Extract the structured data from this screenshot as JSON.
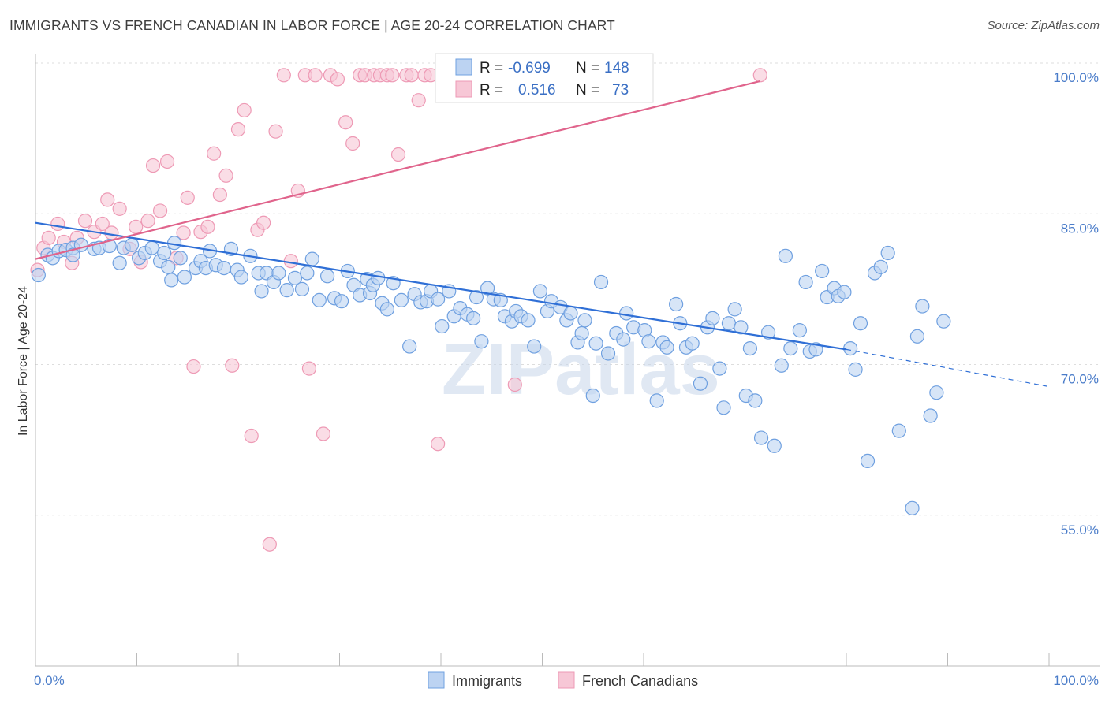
{
  "header": {
    "title": "IMMIGRANTS VS FRENCH CANADIAN IN LABOR FORCE | AGE 20-24 CORRELATION CHART",
    "source": "Source: ZipAtlas.com"
  },
  "watermark": "ZIPatlas",
  "legend_box": {
    "rows": [
      {
        "r_label": "R =",
        "r_value": "-0.699",
        "n_label": "N =",
        "n_value": "148",
        "color": "#6fa0e0"
      },
      {
        "r_label": "R =",
        "r_value": "0.516",
        "n_label": "N =",
        "n_value": "73",
        "color": "#f08aaa"
      }
    ]
  },
  "bottom_legend": [
    "Immigrants",
    "French Canadians"
  ],
  "colors": {
    "blue_fill": "#bcd3f2",
    "blue_stroke": "#6fa0e0",
    "blue_line": "#2f6fd6",
    "pink_fill": "#f7c7d6",
    "pink_stroke": "#ee9ab5",
    "pink_line": "#e0648c",
    "tick_text": "#4a7cc9",
    "grid": "#dddddd"
  },
  "chart_data": {
    "type": "scatter",
    "title": "IMMIGRANTS VS FRENCH CANADIAN IN LABOR FORCE | AGE 20-24 CORRELATION CHART",
    "xlabel": "",
    "ylabel": "In Labor Force | Age 20-24",
    "xlim": [
      0,
      100
    ],
    "ylim": [
      40,
      100
    ],
    "x_tick_labels": [
      "0.0%",
      "100.0%"
    ],
    "y_tick_labels": [
      "55.0%",
      "70.0%",
      "85.0%",
      "100.0%"
    ],
    "y_ticks": [
      55,
      70,
      85,
      100
    ],
    "grid": true,
    "legend_position": "bottom-center",
    "series": [
      {
        "name": "Immigrants",
        "color": "#6fa0e0",
        "trend": {
          "x": [
            0,
            80
          ],
          "y": [
            84.1,
            71.5
          ],
          "dashed_extension_to": [
            100,
            67.8
          ]
        },
        "points": [
          [
            0.3,
            78.9
          ],
          [
            1.2,
            80.9
          ],
          [
            1.7,
            80.6
          ],
          [
            2.3,
            81.3
          ],
          [
            3.0,
            81.4
          ],
          [
            3.7,
            81.6
          ],
          [
            3.7,
            80.9
          ],
          [
            4.5,
            81.9
          ],
          [
            5.8,
            81.5
          ],
          [
            6.3,
            81.6
          ],
          [
            7.3,
            81.8
          ],
          [
            8.3,
            80.1
          ],
          [
            8.7,
            81.6
          ],
          [
            9.5,
            81.9
          ],
          [
            10.2,
            80.6
          ],
          [
            10.8,
            81.1
          ],
          [
            11.5,
            81.6
          ],
          [
            12.3,
            80.3
          ],
          [
            12.7,
            81.1
          ],
          [
            13.1,
            79.7
          ],
          [
            13.4,
            78.4
          ],
          [
            13.7,
            82.1
          ],
          [
            14.3,
            80.6
          ],
          [
            14.7,
            78.7
          ],
          [
            15.8,
            79.6
          ],
          [
            16.3,
            80.3
          ],
          [
            16.8,
            79.6
          ],
          [
            17.2,
            81.3
          ],
          [
            17.8,
            79.9
          ],
          [
            18.6,
            79.6
          ],
          [
            19.3,
            81.5
          ],
          [
            19.9,
            79.4
          ],
          [
            20.3,
            78.7
          ],
          [
            21.2,
            80.8
          ],
          [
            22.0,
            79.1
          ],
          [
            22.3,
            77.3
          ],
          [
            22.8,
            79.1
          ],
          [
            23.5,
            78.2
          ],
          [
            24.0,
            79.1
          ],
          [
            24.8,
            77.4
          ],
          [
            25.6,
            78.6
          ],
          [
            26.3,
            77.5
          ],
          [
            26.8,
            79.1
          ],
          [
            27.3,
            80.5
          ],
          [
            28.0,
            76.4
          ],
          [
            28.8,
            78.8
          ],
          [
            29.5,
            76.6
          ],
          [
            30.2,
            76.3
          ],
          [
            30.8,
            79.3
          ],
          [
            31.4,
            77.9
          ],
          [
            32.0,
            76.9
          ],
          [
            32.7,
            78.5
          ],
          [
            33.0,
            77.1
          ],
          [
            33.3,
            77.9
          ],
          [
            33.8,
            78.6
          ],
          [
            34.2,
            76.1
          ],
          [
            34.7,
            75.5
          ],
          [
            35.3,
            78.1
          ],
          [
            36.1,
            76.4
          ],
          [
            36.9,
            71.8
          ],
          [
            37.4,
            77.0
          ],
          [
            38.0,
            76.2
          ],
          [
            38.6,
            76.3
          ],
          [
            39.0,
            77.3
          ],
          [
            39.7,
            76.5
          ],
          [
            40.1,
            73.8
          ],
          [
            40.8,
            77.3
          ],
          [
            41.3,
            74.8
          ],
          [
            41.9,
            75.6
          ],
          [
            42.6,
            75.0
          ],
          [
            43.2,
            74.6
          ],
          [
            43.5,
            76.7
          ],
          [
            44.0,
            72.3
          ],
          [
            44.6,
            77.6
          ],
          [
            45.2,
            76.5
          ],
          [
            45.9,
            76.4
          ],
          [
            46.3,
            74.8
          ],
          [
            47.0,
            74.3
          ],
          [
            47.4,
            75.3
          ],
          [
            47.9,
            74.8
          ],
          [
            48.6,
            74.4
          ],
          [
            49.2,
            71.8
          ],
          [
            49.8,
            77.3
          ],
          [
            50.5,
            75.3
          ],
          [
            50.9,
            76.3
          ],
          [
            51.8,
            75.7
          ],
          [
            52.4,
            74.4
          ],
          [
            52.8,
            75.1
          ],
          [
            53.5,
            72.2
          ],
          [
            53.9,
            73.1
          ],
          [
            54.2,
            74.4
          ],
          [
            55.0,
            66.9
          ],
          [
            55.3,
            72.1
          ],
          [
            55.8,
            78.2
          ],
          [
            56.5,
            71.1
          ],
          [
            57.3,
            73.1
          ],
          [
            58.0,
            72.5
          ],
          [
            58.3,
            75.1
          ],
          [
            59.0,
            73.7
          ],
          [
            60.1,
            73.4
          ],
          [
            60.5,
            72.3
          ],
          [
            61.3,
            66.4
          ],
          [
            61.9,
            72.2
          ],
          [
            62.3,
            71.7
          ],
          [
            63.2,
            76.0
          ],
          [
            63.6,
            74.1
          ],
          [
            64.2,
            71.7
          ],
          [
            64.8,
            72.1
          ],
          [
            65.6,
            68.1
          ],
          [
            66.3,
            73.7
          ],
          [
            66.8,
            74.6
          ],
          [
            67.5,
            69.6
          ],
          [
            67.9,
            65.7
          ],
          [
            68.4,
            74.1
          ],
          [
            69.0,
            75.5
          ],
          [
            69.6,
            73.7
          ],
          [
            70.1,
            66.9
          ],
          [
            70.5,
            71.6
          ],
          [
            71.0,
            66.4
          ],
          [
            71.6,
            62.7
          ],
          [
            72.3,
            73.2
          ],
          [
            72.9,
            61.9
          ],
          [
            73.6,
            69.9
          ],
          [
            74.0,
            80.8
          ],
          [
            74.5,
            71.6
          ],
          [
            75.4,
            73.4
          ],
          [
            76.0,
            78.2
          ],
          [
            76.4,
            71.3
          ],
          [
            77.0,
            71.5
          ],
          [
            77.6,
            79.3
          ],
          [
            78.1,
            76.7
          ],
          [
            78.8,
            77.6
          ],
          [
            79.2,
            76.8
          ],
          [
            79.8,
            77.2
          ],
          [
            80.4,
            71.6
          ],
          [
            80.9,
            69.5
          ],
          [
            81.4,
            74.1
          ],
          [
            82.1,
            60.4
          ],
          [
            82.8,
            79.1
          ],
          [
            83.4,
            79.7
          ],
          [
            84.1,
            81.1
          ],
          [
            85.2,
            63.4
          ],
          [
            86.5,
            55.7
          ],
          [
            87.0,
            72.8
          ],
          [
            87.5,
            75.8
          ],
          [
            88.3,
            64.9
          ],
          [
            88.9,
            67.2
          ],
          [
            89.6,
            74.3
          ]
        ]
      },
      {
        "name": "French Canadians",
        "color": "#f08aaa",
        "trend": {
          "x": [
            0,
            71.5
          ],
          "y": [
            80.5,
            98.2
          ]
        },
        "points": [
          [
            0.2,
            79.4
          ],
          [
            0.8,
            81.6
          ],
          [
            1.3,
            82.6
          ],
          [
            2.2,
            84.0
          ],
          [
            2.8,
            82.2
          ],
          [
            3.6,
            80.1
          ],
          [
            4.1,
            82.6
          ],
          [
            4.9,
            84.3
          ],
          [
            5.8,
            83.2
          ],
          [
            6.6,
            84.0
          ],
          [
            7.1,
            86.4
          ],
          [
            7.5,
            83.1
          ],
          [
            8.3,
            85.5
          ],
          [
            9.3,
            81.5
          ],
          [
            9.9,
            83.7
          ],
          [
            10.4,
            80.2
          ],
          [
            11.1,
            84.3
          ],
          [
            11.6,
            89.8
          ],
          [
            12.3,
            85.3
          ],
          [
            13.0,
            90.2
          ],
          [
            13.9,
            80.6
          ],
          [
            14.6,
            83.1
          ],
          [
            15.0,
            86.6
          ],
          [
            15.6,
            69.8
          ],
          [
            16.3,
            83.2
          ],
          [
            17.0,
            83.7
          ],
          [
            17.6,
            91.0
          ],
          [
            18.2,
            86.9
          ],
          [
            18.8,
            88.8
          ],
          [
            19.4,
            69.9
          ],
          [
            20.0,
            93.4
          ],
          [
            20.6,
            95.3
          ],
          [
            21.3,
            62.9
          ],
          [
            21.9,
            83.4
          ],
          [
            22.5,
            84.1
          ],
          [
            23.1,
            52.1
          ],
          [
            23.7,
            93.2
          ],
          [
            24.5,
            98.8
          ],
          [
            25.2,
            80.3
          ],
          [
            25.9,
            87.3
          ],
          [
            26.6,
            98.8
          ],
          [
            27.0,
            69.6
          ],
          [
            27.6,
            98.8
          ],
          [
            28.4,
            63.1
          ],
          [
            29.1,
            98.8
          ],
          [
            29.8,
            98.4
          ],
          [
            30.6,
            94.1
          ],
          [
            31.3,
            92.0
          ],
          [
            32.0,
            98.8
          ],
          [
            32.5,
            98.8
          ],
          [
            33.4,
            98.8
          ],
          [
            34.0,
            98.8
          ],
          [
            34.7,
            98.8
          ],
          [
            35.2,
            98.8
          ],
          [
            35.8,
            90.9
          ],
          [
            36.6,
            98.8
          ],
          [
            37.1,
            98.8
          ],
          [
            37.8,
            96.3
          ],
          [
            38.4,
            98.8
          ],
          [
            39.0,
            98.8
          ],
          [
            39.7,
            62.1
          ],
          [
            40.4,
            98.8
          ],
          [
            41.0,
            98.8
          ],
          [
            41.6,
            98.8
          ],
          [
            42.3,
            98.8
          ],
          [
            43.0,
            98.8
          ],
          [
            43.6,
            98.8
          ],
          [
            44.5,
            98.8
          ],
          [
            46.0,
            98.8
          ],
          [
            47.3,
            68.0
          ],
          [
            48.6,
            98.8
          ],
          [
            53.8,
            98.8
          ],
          [
            71.5,
            98.8
          ]
        ]
      }
    ]
  }
}
